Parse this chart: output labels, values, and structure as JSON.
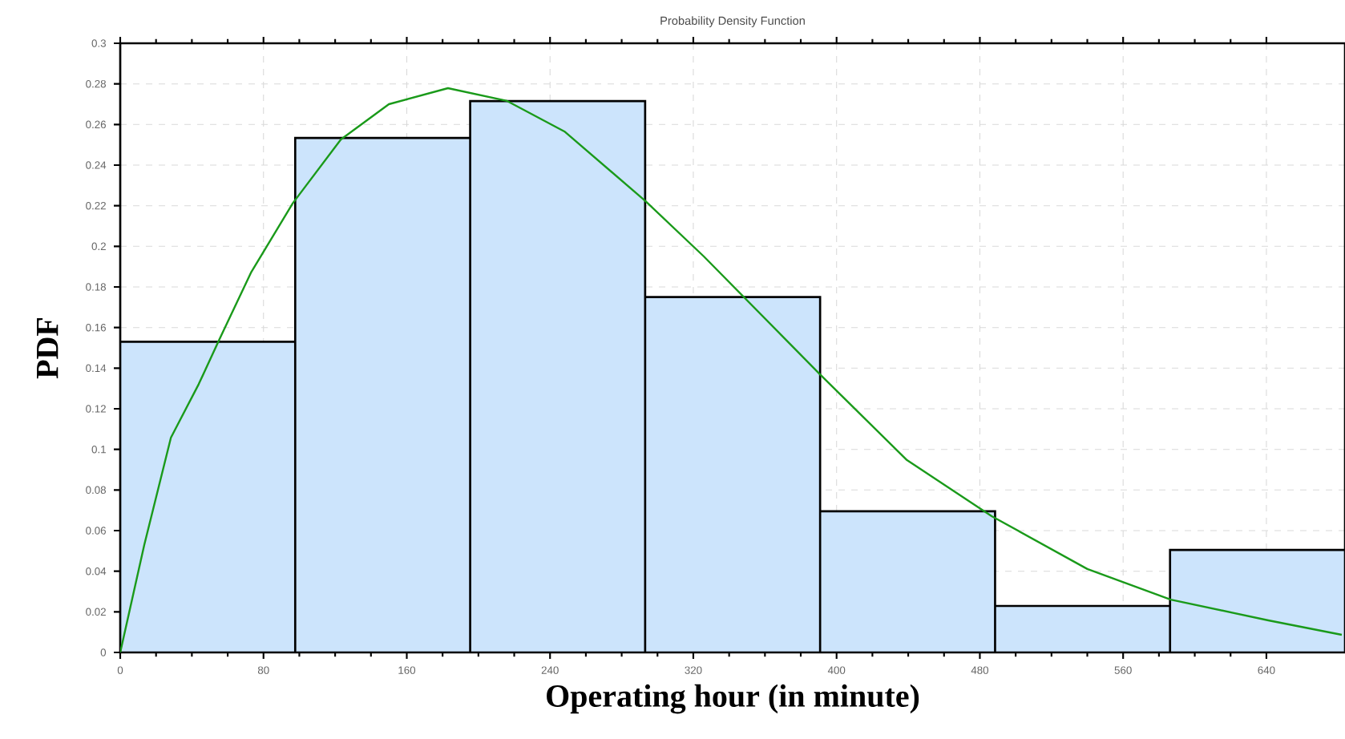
{
  "chart_data": {
    "type": "histogram",
    "title": "Probability Density Function",
    "xlabel": "Operating hour (in minute)",
    "ylabel": "PDF",
    "xlim": [
      0,
      683.9
    ],
    "ylim": [
      0,
      0.3
    ],
    "xticks": [
      0,
      80,
      160,
      240,
      320,
      400,
      480,
      560,
      640
    ],
    "yticks": [
      0,
      0.02,
      0.04,
      0.06,
      0.08,
      0.1,
      0.12,
      0.14,
      0.16,
      0.18,
      0.2,
      0.22,
      0.24,
      0.26,
      0.28,
      0.3
    ],
    "grid": true,
    "series": [
      {
        "type": "histogram",
        "color": "#cce4fc",
        "bins": [
          0,
          97.7,
          195.4,
          293.1,
          390.8,
          488.5,
          586.2,
          683.9
        ],
        "values": [
          0.153,
          0.2534,
          0.2715,
          0.175,
          0.0695,
          0.0229,
          0.0505
        ]
      },
      {
        "type": "line",
        "color": "#1a9a1a",
        "x": [
          0,
          13.4,
          28.3,
          43.8,
          55.4,
          73.2,
          96.4,
          123.2,
          150,
          183,
          216,
          248,
          292.9,
          325.9,
          390.2,
          439.3,
          486.6,
          540,
          586.6,
          641.1,
          682.1
        ],
        "values": [
          0,
          0.0529,
          0.1058,
          0.1321,
          0.1542,
          0.1874,
          0.2213,
          0.2526,
          0.27,
          0.2779,
          0.2716,
          0.2566,
          0.2226,
          0.195,
          0.1374,
          0.0947,
          0.0671,
          0.0411,
          0.026,
          0.0158,
          0.0087
        ]
      }
    ]
  }
}
